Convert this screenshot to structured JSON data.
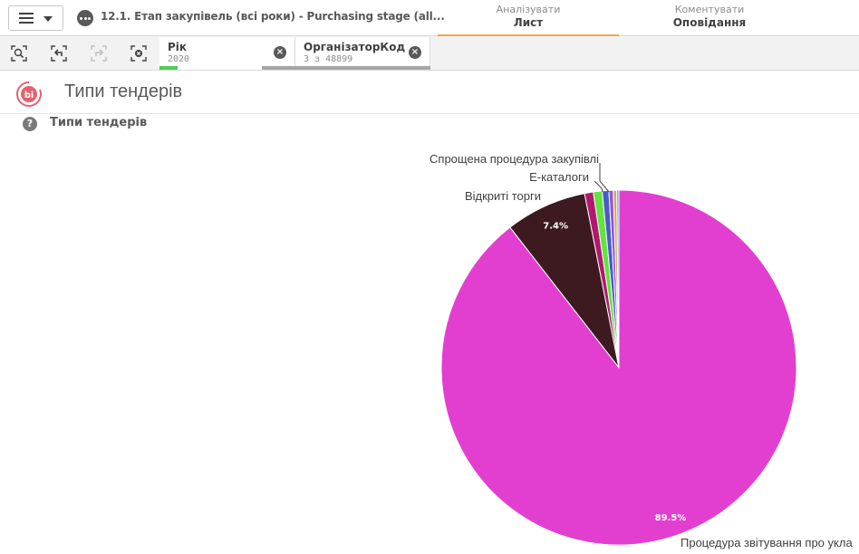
{
  "app": {
    "title": "12.1. Етап закупівель (всі роки) - Purchasing stage (all..."
  },
  "nav": {
    "tabs": [
      {
        "sub": "Аналізувати",
        "main": "Лист",
        "active": true
      },
      {
        "sub": "Коментувати",
        "main": "Оповідання",
        "active": false
      }
    ]
  },
  "selections": {
    "chips": [
      {
        "field": "Рік",
        "value": "2020"
      },
      {
        "field": "ОрганізаторКод",
        "value": "3 з 48899"
      }
    ]
  },
  "sheet": {
    "title": "Типи тендерів",
    "logo_text": "bi"
  },
  "object": {
    "title": "Типи тендерів"
  },
  "chart_data": {
    "type": "pie",
    "title": "Типи тендерів",
    "slices": [
      {
        "label": "Процедура звітування про укла",
        "value": 89.5,
        "color": "#e23fd1",
        "pct_label": "89.5%"
      },
      {
        "label": "Відкриті торги",
        "value": 7.4,
        "color": "#3d1a20",
        "pct_label": "7.4%"
      },
      {
        "label": "",
        "value": 0.8,
        "color": "#b0196e",
        "pct_label": ""
      },
      {
        "label": "Е-каталоги",
        "value": 0.8,
        "color": "#63e340",
        "pct_label": ""
      },
      {
        "label": "Спрощена процедура закупівлі",
        "value": 0.6,
        "color": "#4a5ac9",
        "pct_label": ""
      },
      {
        "label": "",
        "value": 0.4,
        "color": "#8e5bd6",
        "pct_label": ""
      },
      {
        "label": "",
        "value": 0.3,
        "color": "#e6a05a",
        "pct_label": ""
      },
      {
        "label": "",
        "value": 0.2,
        "color": "#5ab0e6",
        "pct_label": ""
      }
    ]
  }
}
